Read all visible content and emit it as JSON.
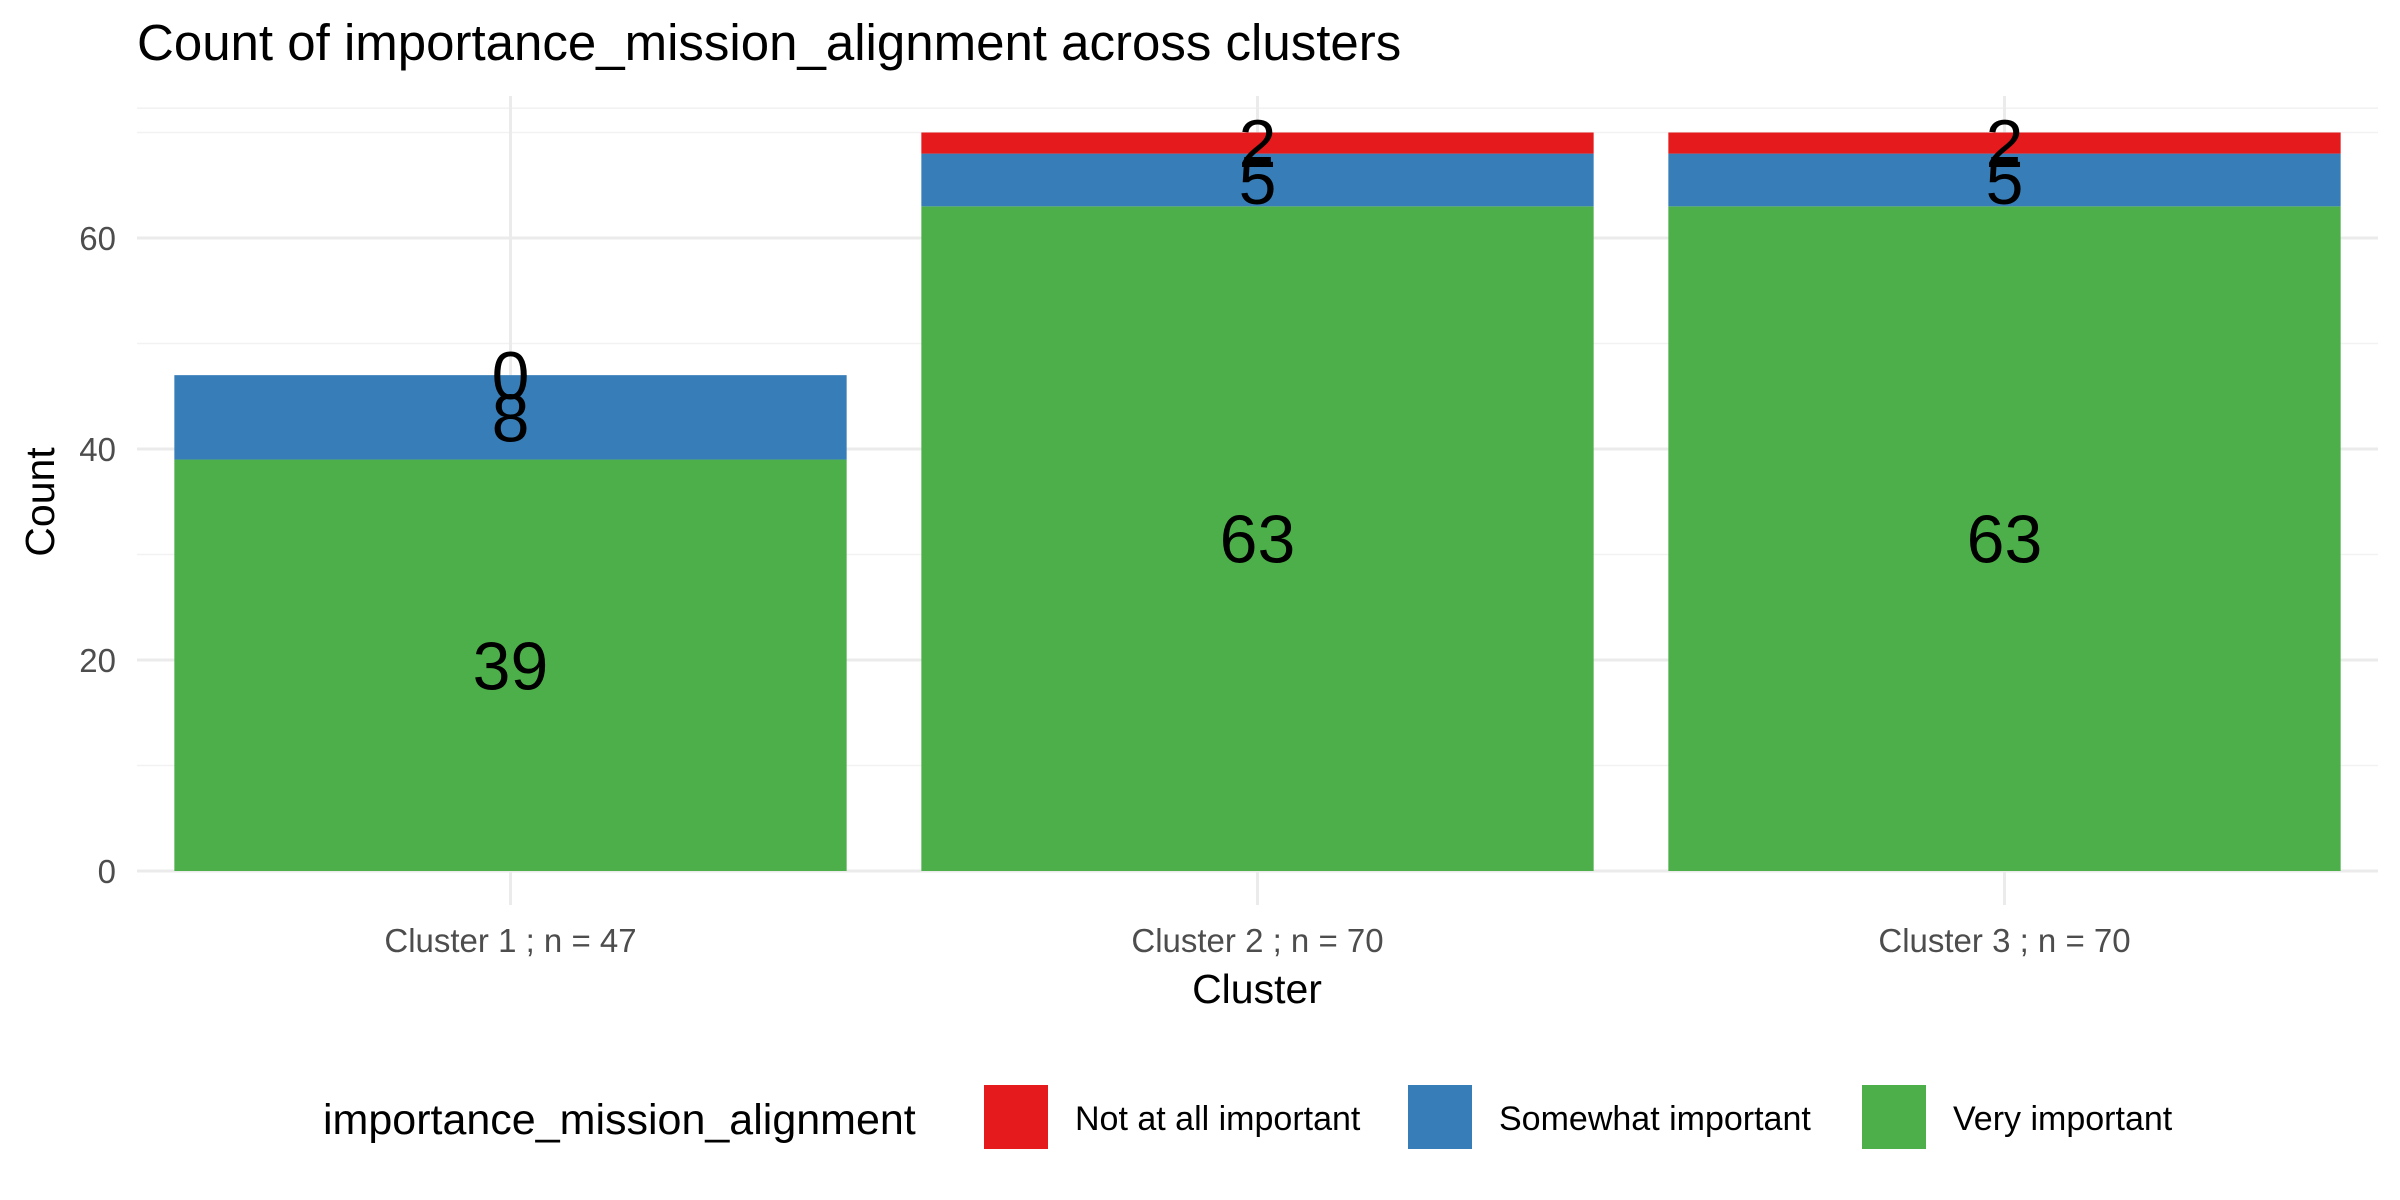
{
  "chart_data": {
    "type": "bar",
    "stacked": true,
    "title": "Count of importance_mission_alignment across clusters",
    "xlabel": "Cluster",
    "ylabel": "Count",
    "categories": [
      "Cluster 1 ; n = 47",
      "Cluster 2 ; n = 70",
      "Cluster 3 ; n = 70"
    ],
    "series": [
      {
        "name": "Very important",
        "color": "#4daf4a",
        "values": [
          39,
          63,
          63
        ]
      },
      {
        "name": "Somewhat important",
        "color": "#377eb8",
        "values": [
          8,
          5,
          5
        ]
      },
      {
        "name": "Not at all important",
        "color": "#e41a1c",
        "values": [
          0,
          2,
          2
        ]
      }
    ],
    "y_ticks": [
      "0",
      "20",
      "40",
      "60"
    ],
    "ylim": [
      0,
      70
    ],
    "grid": true,
    "legend": {
      "title": "importance_mission_alignment",
      "position": "bottom",
      "order": [
        "Not at all important",
        "Somewhat important",
        "Very important"
      ]
    }
  }
}
